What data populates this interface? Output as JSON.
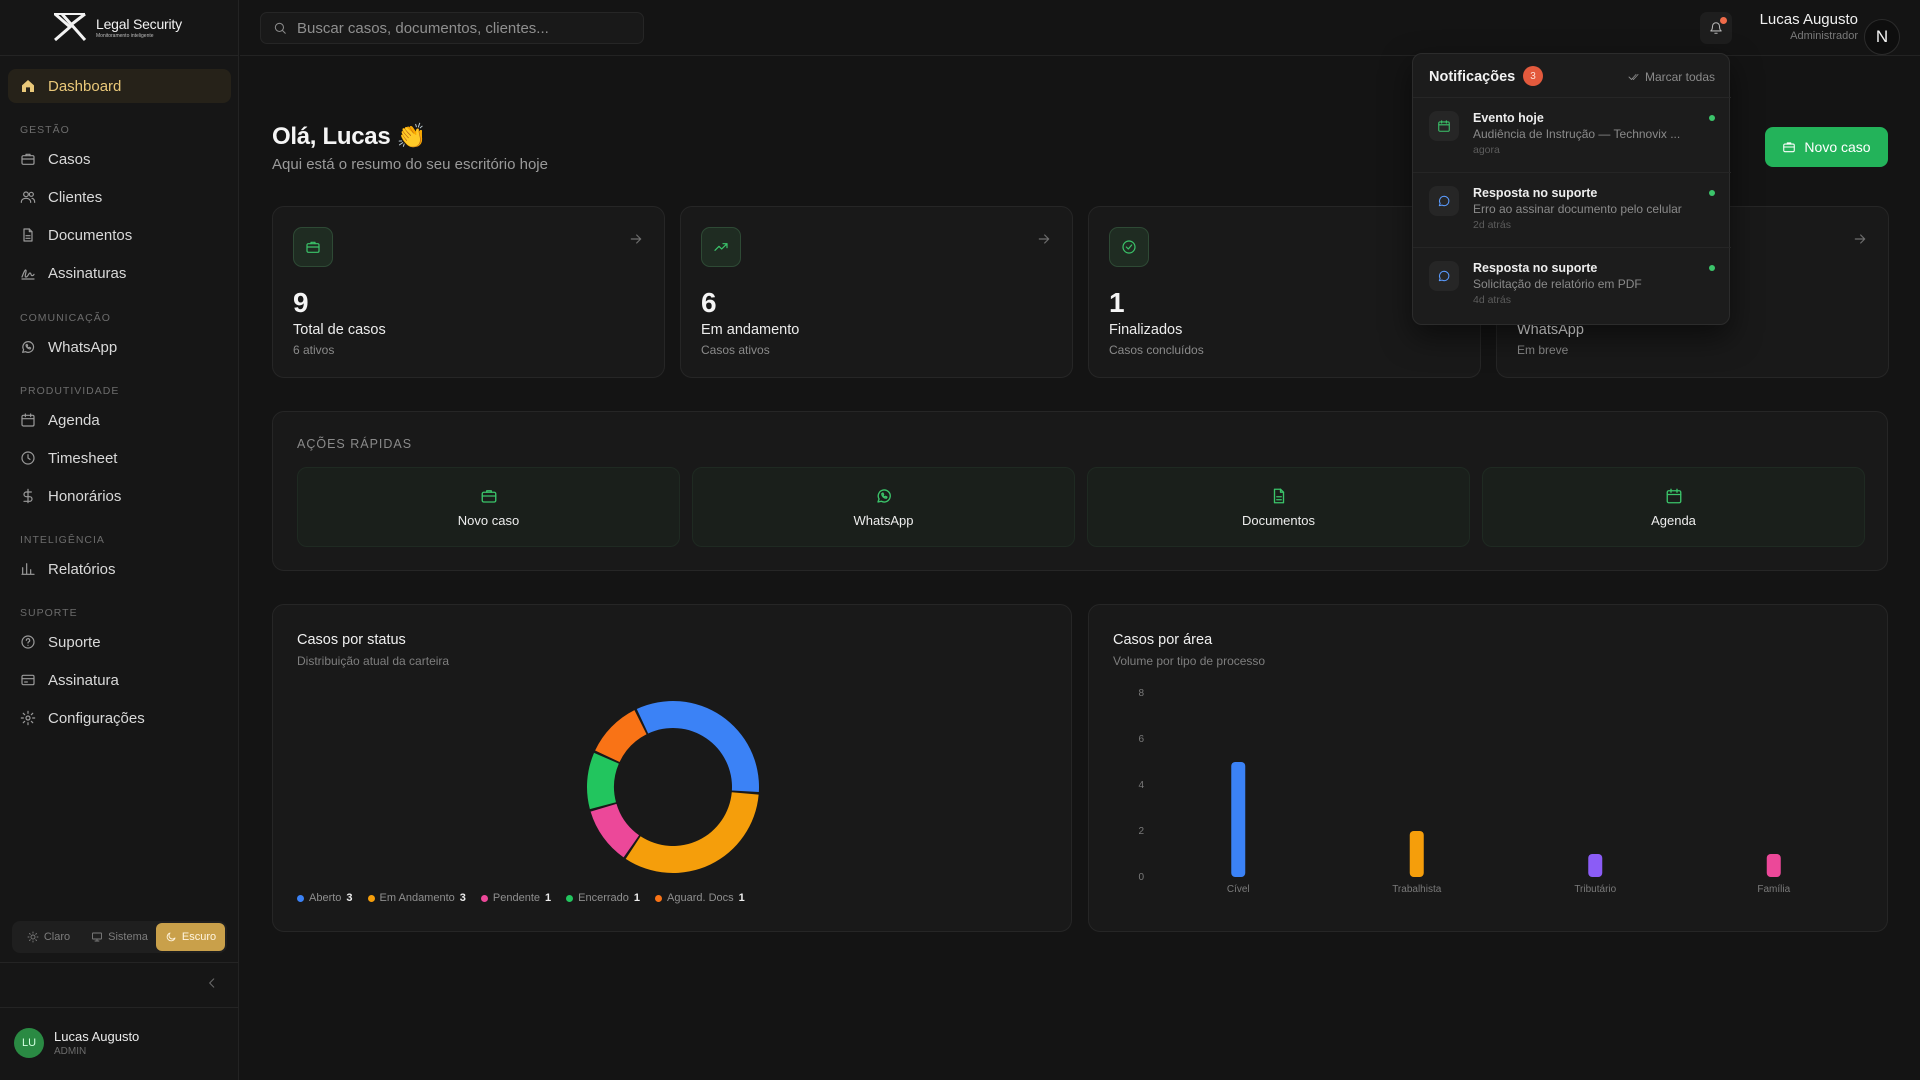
{
  "colors": {
    "accent_green": "#23b35a",
    "accent_gold": "#e9c879",
    "background": "#141414",
    "card": "#191919"
  },
  "brand": {
    "name": "Legal Security",
    "tagline": "Monitoramento inteligente"
  },
  "search": {
    "placeholder": "Buscar casos, documentos, clientes..."
  },
  "header": {
    "user_name": "Lucas Augusto",
    "user_role": "Administrador",
    "avatar_initial": "N"
  },
  "sidebar": {
    "dashboard": "Dashboard",
    "sections": {
      "gestao": "GESTÃO",
      "comunicacao": "COMUNICAÇÃO",
      "produtividade": "PRODUTIVIDADE",
      "inteligencia": "INTELIGÊNCIA",
      "suporte": "SUPORTE"
    },
    "items": {
      "casos": "Casos",
      "clientes": "Clientes",
      "documentos": "Documentos",
      "assinaturas": "Assinaturas",
      "whatsapp": "WhatsApp",
      "agenda": "Agenda",
      "timesheet": "Timesheet",
      "honorarios": "Honorários",
      "relatorios": "Relatórios",
      "suporte": "Suporte",
      "assinatura": "Assinatura",
      "configuracoes": "Configurações"
    },
    "theme": {
      "light": "Claro",
      "system": "Sistema",
      "dark": "Escuro",
      "selected": "Escuro"
    },
    "user": {
      "initials": "LU",
      "name": "Lucas Augusto",
      "role": "ADMIN"
    }
  },
  "greeting": {
    "title": "Olá, Lucas",
    "emoji": "👏",
    "subtitle": "Aqui está o resumo do seu escritório hoje"
  },
  "new_case_button": "Novo caso",
  "stats": [
    {
      "value": "9",
      "label": "Total de casos",
      "sub": "6 ativos",
      "icon": "briefcase-icon"
    },
    {
      "value": "6",
      "label": "Em andamento",
      "sub": "Casos ativos",
      "icon": "trending-up-icon"
    },
    {
      "value": "1",
      "label": "Finalizados",
      "sub": "Casos concluídos",
      "icon": "check-circle-icon"
    },
    {
      "value": "",
      "label": "WhatsApp",
      "sub": "Em breve",
      "icon": "whatsapp-icon"
    }
  ],
  "quick_actions": {
    "title": "AÇÕES RÁPIDAS",
    "items": [
      {
        "label": "Novo caso",
        "icon": "briefcase-icon"
      },
      {
        "label": "WhatsApp",
        "icon": "whatsapp-icon"
      },
      {
        "label": "Documentos",
        "icon": "document-icon"
      },
      {
        "label": "Agenda",
        "icon": "calendar-icon"
      }
    ]
  },
  "status_chart": {
    "title": "Casos por status",
    "subtitle": "Distribuição atual da carteira"
  },
  "area_chart": {
    "title": "Casos por área",
    "subtitle": "Volume por tipo de processo"
  },
  "chart_data": [
    {
      "type": "pie",
      "title": "Casos por status",
      "labels": [
        "Aberto",
        "Em Andamento",
        "Pendente",
        "Encerrado",
        "Aguard. Docs"
      ],
      "values": [
        3,
        3,
        1,
        1,
        1
      ],
      "colors": [
        "#3b82f6",
        "#f59e0b",
        "#ec4899",
        "#22c55e",
        "#f97316"
      ],
      "legend_position": "bottom-left"
    },
    {
      "type": "bar",
      "title": "Casos por área",
      "categories": [
        "Cível",
        "Trabalhista",
        "Tributário",
        "Família"
      ],
      "values": [
        5,
        2,
        1,
        1
      ],
      "colors": [
        "#3b82f6",
        "#f59e0b",
        "#8b5cf6",
        "#ec4899"
      ],
      "yticks": [
        "0",
        "2",
        "4",
        "6",
        "8"
      ],
      "ylim": [
        0,
        8
      ],
      "grid": false
    }
  ],
  "notifications": {
    "title": "Notificações",
    "count": "3",
    "mark_all": "Marcar todas",
    "items": [
      {
        "title": "Evento hoje",
        "description": "Audiência de Instrução — Technovix ...",
        "time": "agora",
        "icon": "calendar-icon",
        "color": "#3bc46a"
      },
      {
        "title": "Resposta no suporte",
        "description": "Erro ao assinar documento pelo celular",
        "time": "2d atrás",
        "icon": "message-icon",
        "color": "#5b9cff"
      },
      {
        "title": "Resposta no suporte",
        "description": "Solicitação de relatório em PDF",
        "time": "4d atrás",
        "icon": "message-icon",
        "color": "#5b9cff"
      }
    ]
  }
}
